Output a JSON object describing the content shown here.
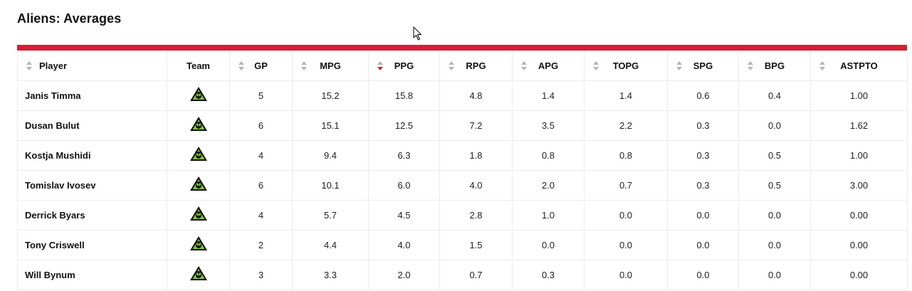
{
  "page": {
    "title": "Aliens: Averages"
  },
  "colors": {
    "accent": "#d81e35",
    "logo_green": "#7ec242",
    "logo_black": "#111111"
  },
  "table": {
    "columns": [
      {
        "key": "player",
        "label": "Player",
        "sortable": true
      },
      {
        "key": "team",
        "label": "Team",
        "sortable": false
      },
      {
        "key": "gp",
        "label": "GP",
        "sortable": true
      },
      {
        "key": "mpg",
        "label": "MPG",
        "sortable": true
      },
      {
        "key": "ppg",
        "label": "PPG",
        "sortable": true,
        "sorted": "desc"
      },
      {
        "key": "rpg",
        "label": "RPG",
        "sortable": true
      },
      {
        "key": "apg",
        "label": "APG",
        "sortable": true
      },
      {
        "key": "topg",
        "label": "TOPG",
        "sortable": true
      },
      {
        "key": "spg",
        "label": "SPG",
        "sortable": true
      },
      {
        "key": "bpg",
        "label": "BPG",
        "sortable": true
      },
      {
        "key": "astpto",
        "label": "ASTPTO",
        "sortable": true
      }
    ],
    "team_logo_icon": "aliens-logo-icon",
    "team_logo_text": "ALIENS",
    "rows": [
      {
        "player": "Janis Timma",
        "gp": "5",
        "mpg": "15.2",
        "ppg": "15.8",
        "rpg": "4.8",
        "apg": "1.4",
        "topg": "1.4",
        "spg": "0.6",
        "bpg": "0.4",
        "astpto": "1.00"
      },
      {
        "player": "Dusan Bulut",
        "gp": "6",
        "mpg": "15.1",
        "ppg": "12.5",
        "rpg": "7.2",
        "apg": "3.5",
        "topg": "2.2",
        "spg": "0.3",
        "bpg": "0.0",
        "astpto": "1.62"
      },
      {
        "player": "Kostja Mushidi",
        "gp": "4",
        "mpg": "9.4",
        "ppg": "6.3",
        "rpg": "1.8",
        "apg": "0.8",
        "topg": "0.8",
        "spg": "0.3",
        "bpg": "0.5",
        "astpto": "1.00"
      },
      {
        "player": "Tomislav Ivosev",
        "gp": "6",
        "mpg": "10.1",
        "ppg": "6.0",
        "rpg": "4.0",
        "apg": "2.0",
        "topg": "0.7",
        "spg": "0.3",
        "bpg": "0.5",
        "astpto": "3.00"
      },
      {
        "player": "Derrick Byars",
        "gp": "4",
        "mpg": "5.7",
        "ppg": "4.5",
        "rpg": "2.8",
        "apg": "1.0",
        "topg": "0.0",
        "spg": "0.0",
        "bpg": "0.0",
        "astpto": "0.00"
      },
      {
        "player": "Tony Criswell",
        "gp": "2",
        "mpg": "4.4",
        "ppg": "4.0",
        "rpg": "1.5",
        "apg": "0.0",
        "topg": "0.0",
        "spg": "0.0",
        "bpg": "0.0",
        "astpto": "0.00"
      },
      {
        "player": "Will Bynum",
        "gp": "3",
        "mpg": "3.3",
        "ppg": "2.0",
        "rpg": "0.7",
        "apg": "0.3",
        "topg": "0.0",
        "spg": "0.0",
        "bpg": "0.0",
        "astpto": "0.00"
      }
    ]
  }
}
